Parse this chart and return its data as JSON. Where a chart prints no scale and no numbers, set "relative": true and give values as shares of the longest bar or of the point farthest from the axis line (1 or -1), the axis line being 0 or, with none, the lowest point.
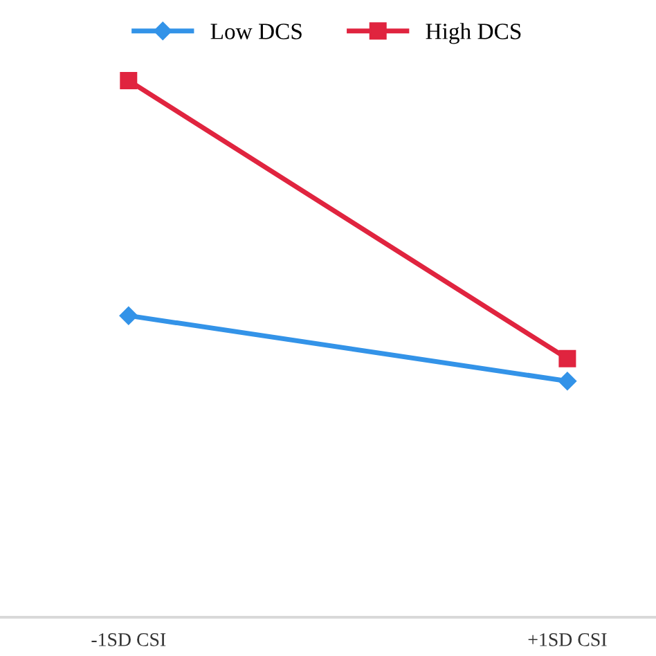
{
  "chart_data": {
    "type": "line",
    "relative": true,
    "categories": [
      "-1SD CSI",
      "+1SD CSI"
    ],
    "series": [
      {
        "name": "Low DCS",
        "color": "#3393e8",
        "marker": "diamond",
        "values": [
          0.562,
          0.44
        ]
      },
      {
        "name": "High DCS",
        "color": "#e0243f",
        "marker": "square",
        "values": [
          1,
          0.482
        ]
      }
    ],
    "legend": "top",
    "grid": false
  }
}
